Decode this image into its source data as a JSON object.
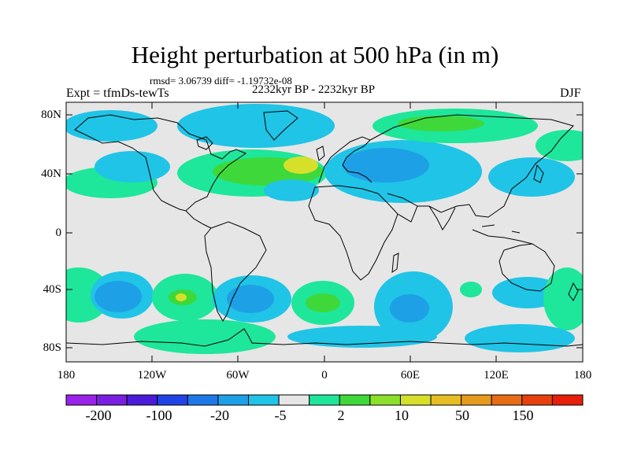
{
  "title": "Height perturbation at 500 hPa (in m)",
  "stats": "rmsd= 3.06739 diff= -1.19732e-08",
  "experiment": "Expt = tfmDs-tewTs",
  "period": "2232kyr BP - 2232kyr BP",
  "season": "DJF",
  "lat_labels": [
    "80N",
    "40N",
    "0",
    "40S",
    "80S"
  ],
  "lon_labels": [
    "180",
    "120W",
    "60W",
    "0",
    "60E",
    "120E",
    "180"
  ],
  "colorbar": {
    "colors": [
      "#9b22e8",
      "#7a1fe0",
      "#4a1bd9",
      "#1f44e6",
      "#1e78e8",
      "#1ea0e6",
      "#20c4e6",
      "#e6e6e6",
      "#1ee69b",
      "#3fd83a",
      "#8ce02c",
      "#d6e02a",
      "#e6be24",
      "#e69a1c",
      "#e66c16",
      "#e6400e",
      "#e61e0a"
    ],
    "labels": [
      "-200",
      "-100",
      "-20",
      "-5",
      "2",
      "10",
      "50",
      "150"
    ]
  }
}
